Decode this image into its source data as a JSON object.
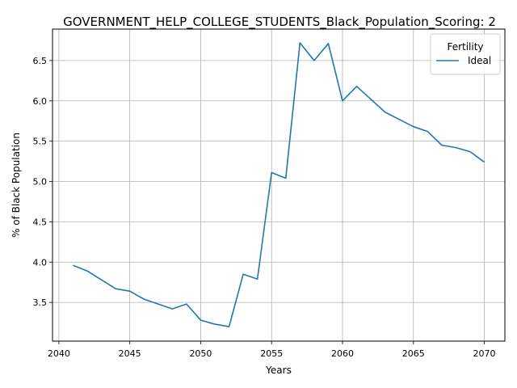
{
  "chart_data": {
    "type": "line",
    "title": "GOVERNMENT_HELP_COLLEGE_STUDENTS_Black_Population_Scoring: 2",
    "xlabel": "Years",
    "ylabel": "% of Black Population",
    "xlim": [
      2039.55,
      2071.45
    ],
    "ylim": [
      3.02,
      6.89
    ],
    "xticks": [
      2040,
      2045,
      2050,
      2055,
      2060,
      2065,
      2070
    ],
    "yticks": [
      3.5,
      4.0,
      4.5,
      5.0,
      5.5,
      6.0,
      6.5
    ],
    "grid": true,
    "legend": {
      "title": "Fertility",
      "placement": "top-right"
    },
    "series": [
      {
        "name": "Ideal",
        "color": "#1f77b4",
        "x": [
          2041,
          2042,
          2043,
          2044,
          2045,
          2046,
          2047,
          2048,
          2049,
          2050,
          2051,
          2052,
          2053,
          2054,
          2055,
          2056,
          2057,
          2058,
          2059,
          2060,
          2061,
          2062,
          2063,
          2064,
          2065,
          2066,
          2067,
          2068,
          2069,
          2070
        ],
        "y": [
          3.96,
          3.89,
          3.78,
          3.67,
          3.64,
          3.54,
          3.48,
          3.42,
          3.48,
          3.28,
          3.23,
          3.2,
          3.85,
          3.79,
          5.11,
          5.04,
          6.72,
          6.5,
          6.71,
          6.0,
          6.18,
          6.02,
          5.86,
          5.77,
          5.68,
          5.62,
          5.45,
          5.42,
          5.37,
          5.24
        ]
      }
    ]
  }
}
